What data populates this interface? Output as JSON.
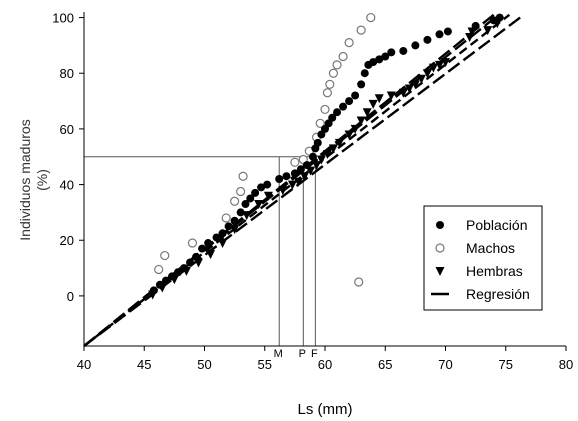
{
  "chart_data": {
    "type": "scatter",
    "xlabel": "Ls (mm)",
    "ylabel_lines": [
      "Individuos maduros",
      "(%)"
    ],
    "xlim": [
      40,
      80
    ],
    "ylim": [
      -18,
      102
    ],
    "x_ticks": [
      40,
      45,
      50,
      55,
      60,
      65,
      70,
      75,
      80
    ],
    "y_ticks": [
      0,
      20,
      40,
      60,
      80,
      100
    ],
    "grid": false,
    "legend_position": "right",
    "reference_y": 50,
    "reference_lines": [
      {
        "label": "M",
        "x": 56.2
      },
      {
        "label": "P",
        "x": 58.2
      },
      {
        "label": "F",
        "x": 59.2
      }
    ],
    "series": [
      {
        "name": "Población",
        "marker": "filled-circle",
        "color": "#000000",
        "points": [
          [
            45.8,
            2
          ],
          [
            46.3,
            4
          ],
          [
            46.8,
            5.5
          ],
          [
            47.3,
            7
          ],
          [
            47.8,
            8.5
          ],
          [
            48.3,
            10
          ],
          [
            48.8,
            12
          ],
          [
            49.3,
            14
          ],
          [
            49.8,
            17
          ],
          [
            50.3,
            19
          ],
          [
            51.0,
            21
          ],
          [
            51.5,
            22.5
          ],
          [
            52.0,
            25
          ],
          [
            52.5,
            27
          ],
          [
            53.0,
            30
          ],
          [
            53.4,
            33
          ],
          [
            53.8,
            35
          ],
          [
            54.2,
            37
          ],
          [
            54.7,
            39
          ],
          [
            55.2,
            40
          ],
          [
            56.2,
            42
          ],
          [
            56.8,
            43
          ],
          [
            57.5,
            44
          ],
          [
            58.0,
            45.5
          ],
          [
            58.5,
            47
          ],
          [
            59.0,
            50
          ],
          [
            59.2,
            53
          ],
          [
            59.4,
            55
          ],
          [
            59.7,
            58
          ],
          [
            60.0,
            60
          ],
          [
            60.3,
            62
          ],
          [
            60.6,
            64
          ],
          [
            61.0,
            66
          ],
          [
            61.5,
            68
          ],
          [
            62.0,
            70
          ],
          [
            62.5,
            72
          ],
          [
            63.0,
            76
          ],
          [
            63.3,
            80
          ],
          [
            63.6,
            83
          ],
          [
            64.0,
            84
          ],
          [
            64.5,
            85
          ],
          [
            65.0,
            86
          ],
          [
            65.5,
            87.5
          ],
          [
            66.5,
            88
          ],
          [
            67.5,
            90
          ],
          [
            68.5,
            92
          ],
          [
            69.5,
            94
          ],
          [
            70.2,
            95
          ],
          [
            72.5,
            97
          ],
          [
            74.0,
            99
          ],
          [
            74.5,
            100
          ]
        ]
      },
      {
        "name": "Machos",
        "marker": "open-circle",
        "color": "#888888",
        "points": [
          [
            46.2,
            9.5
          ],
          [
            46.7,
            14.5
          ],
          [
            49.0,
            19
          ],
          [
            51.8,
            28
          ],
          [
            52.5,
            34
          ],
          [
            53.0,
            37.5
          ],
          [
            53.2,
            43
          ],
          [
            57.5,
            48
          ],
          [
            58.2,
            49
          ],
          [
            58.7,
            52
          ],
          [
            59.3,
            57
          ],
          [
            59.6,
            62
          ],
          [
            60.0,
            67
          ],
          [
            60.2,
            73
          ],
          [
            60.4,
            76
          ],
          [
            60.7,
            80
          ],
          [
            61.0,
            83
          ],
          [
            61.5,
            86
          ],
          [
            62.0,
            91
          ],
          [
            63.0,
            95.5
          ],
          [
            63.8,
            100
          ],
          [
            62.8,
            5
          ]
        ]
      },
      {
        "name": "Hembras",
        "marker": "filled-triangle-down",
        "color": "#000000",
        "points": [
          [
            45.7,
            0.5
          ],
          [
            46.5,
            3
          ],
          [
            47.5,
            6
          ],
          [
            48.5,
            9
          ],
          [
            49.5,
            12
          ],
          [
            50.5,
            15
          ],
          [
            51.5,
            19
          ],
          [
            52.5,
            24
          ],
          [
            53.5,
            29
          ],
          [
            54.5,
            33
          ],
          [
            55.3,
            36
          ],
          [
            56.5,
            38
          ],
          [
            57.3,
            40
          ],
          [
            57.8,
            41
          ],
          [
            58.3,
            43
          ],
          [
            58.8,
            45
          ],
          [
            59.3,
            47
          ],
          [
            59.7,
            49
          ],
          [
            60.2,
            51
          ],
          [
            60.7,
            53
          ],
          [
            61.2,
            55
          ],
          [
            62.0,
            58
          ],
          [
            62.5,
            60
          ],
          [
            63.0,
            63
          ],
          [
            63.5,
            66
          ],
          [
            64.0,
            69
          ],
          [
            64.5,
            71
          ],
          [
            65.5,
            72
          ],
          [
            66.5,
            73
          ],
          [
            67.0,
            74.5
          ],
          [
            67.5,
            76
          ],
          [
            68.0,
            78
          ],
          [
            68.5,
            80
          ],
          [
            69.0,
            82
          ],
          [
            69.5,
            83
          ],
          [
            70.0,
            84
          ],
          [
            72.0,
            93
          ],
          [
            72.2,
            95
          ],
          [
            73.5,
            95.5
          ],
          [
            74.3,
            98
          ]
        ]
      },
      {
        "name": "Regresión",
        "marker": "line",
        "color": "#000000",
        "lines": [
          {
            "x": [
              40,
              74.0
            ],
            "y": [
              -18,
              101
            ],
            "dash": "long"
          },
          {
            "x": [
              40,
              76.5
            ],
            "y": [
              -18,
              101
            ],
            "dash": "long"
          },
          {
            "x": [
              40,
              75.3
            ],
            "y": [
              -18,
              101
            ],
            "dash": "medium"
          },
          {
            "x": [
              40,
              74.4
            ],
            "y": [
              -18,
              101
            ],
            "dash": "long"
          }
        ]
      }
    ]
  }
}
